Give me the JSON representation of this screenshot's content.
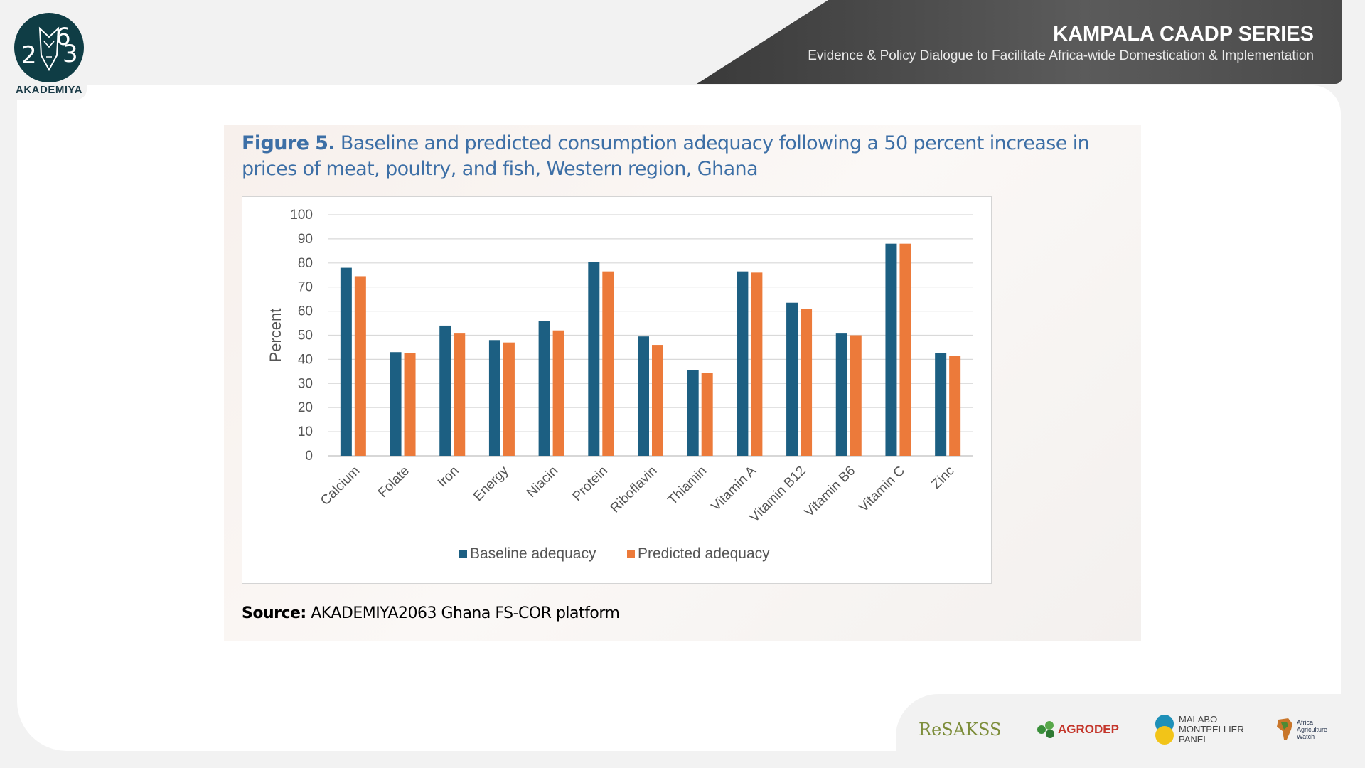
{
  "logo": {
    "text": "AKADEMIYA",
    "glyphs": [
      "2",
      "6",
      "3"
    ]
  },
  "banner": {
    "title": "KAMPALA CAADP SERIES",
    "subtitle": "Evidence & Policy Dialogue to Facilitate Africa-wide Domestication & Implementation"
  },
  "figure": {
    "label": "Figure 5.",
    "title": "Baseline and predicted consumption adequacy following a 50 percent increase in prices of meat, poultry, and fish, Western region, Ghana"
  },
  "source": {
    "label": "Source:",
    "text": "AKADEMIYA2063 Ghana FS-COR platform"
  },
  "partners": {
    "resakss": "ReSAKSS",
    "agrodep": "AGRODEP",
    "malabo": [
      "MALABO",
      "MONTPELLIER",
      "PANEL"
    ],
    "aaw": [
      "Africa",
      "Agriculture",
      "Watch"
    ]
  },
  "colors": {
    "baseline": "#1c5f82",
    "predicted": "#ec7a3a",
    "title": "#3d6fa6"
  },
  "chart_data": {
    "type": "bar",
    "ylabel": "Percent",
    "xlabel": "",
    "ylim": [
      0,
      100
    ],
    "yticks": [
      0,
      10,
      20,
      30,
      40,
      50,
      60,
      70,
      80,
      90,
      100
    ],
    "grid": true,
    "legend_position": "bottom",
    "categories": [
      "Calcium",
      "Folate",
      "Iron",
      "Energy",
      "Niacin",
      "Protein",
      "Riboflavin",
      "Thiamin",
      "Vitamin A",
      "Vitamin B12",
      "Vitamin B6",
      "Vitamin C",
      "Zinc"
    ],
    "series": [
      {
        "name": "Baseline adequacy",
        "values": [
          78,
          43,
          54,
          48,
          56,
          80.5,
          49.5,
          35.5,
          76.5,
          63.5,
          51,
          88,
          42.5
        ]
      },
      {
        "name": "Predicted adequacy",
        "values": [
          74.5,
          42.5,
          51,
          47,
          52,
          76.5,
          46,
          34.5,
          76,
          61,
          50,
          88,
          41.5
        ]
      }
    ]
  }
}
